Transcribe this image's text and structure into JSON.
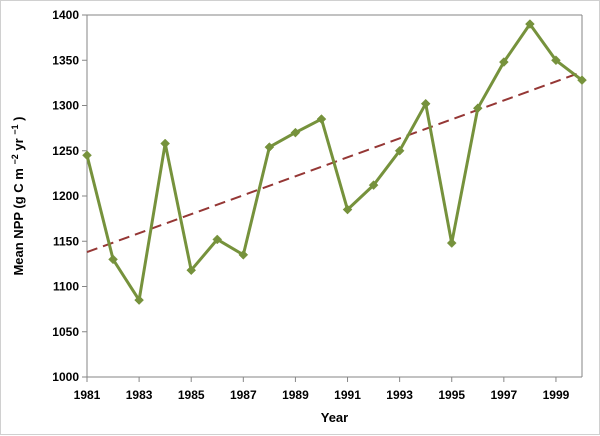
{
  "chart_data": {
    "type": "line",
    "xlabel": "Year",
    "ylabel": {
      "text_before": "Mean NPP (g C m",
      "sup1": "−2",
      "text_middle": " yr",
      "sup2": "−1",
      "text_after": ")"
    },
    "xlim": [
      1981,
      2000
    ],
    "ylim": [
      1000,
      1400
    ],
    "x_ticks": [
      1981,
      1983,
      1985,
      1987,
      1989,
      1991,
      1993,
      1995,
      1997,
      1999
    ],
    "x_tick_labels": [
      "1981",
      "1983",
      "1985",
      "1987",
      "1989",
      "1991",
      "1993",
      "1995",
      "1997",
      "1999"
    ],
    "y_ticks": [
      1000,
      1050,
      1100,
      1150,
      1200,
      1250,
      1300,
      1350,
      1400
    ],
    "y_tick_labels": [
      "1000",
      "1050",
      "1100",
      "1150",
      "1200",
      "1250",
      "1300",
      "1350",
      "1400"
    ],
    "grid": false,
    "legend": "none",
    "series": [
      {
        "style": "solid line with diamond markers",
        "color": "#76923c",
        "x": [
          1981,
          1982,
          1983,
          1984,
          1985,
          1986,
          1987,
          1988,
          1989,
          1990,
          1991,
          1992,
          1993,
          1994,
          1995,
          1996,
          1997,
          1998,
          1999,
          2000
        ],
        "values": [
          1245,
          1130,
          1085,
          1258,
          1118,
          1152,
          1135,
          1254,
          1270,
          1285,
          1185,
          1212,
          1250,
          1302,
          1148,
          1297,
          1348,
          1390,
          1350,
          1328
        ]
      }
    ],
    "trendline": {
      "style": "dashed",
      "color": "#953735",
      "x": [
        1981,
        2000
      ],
      "values": [
        1138,
        1337
      ]
    }
  }
}
